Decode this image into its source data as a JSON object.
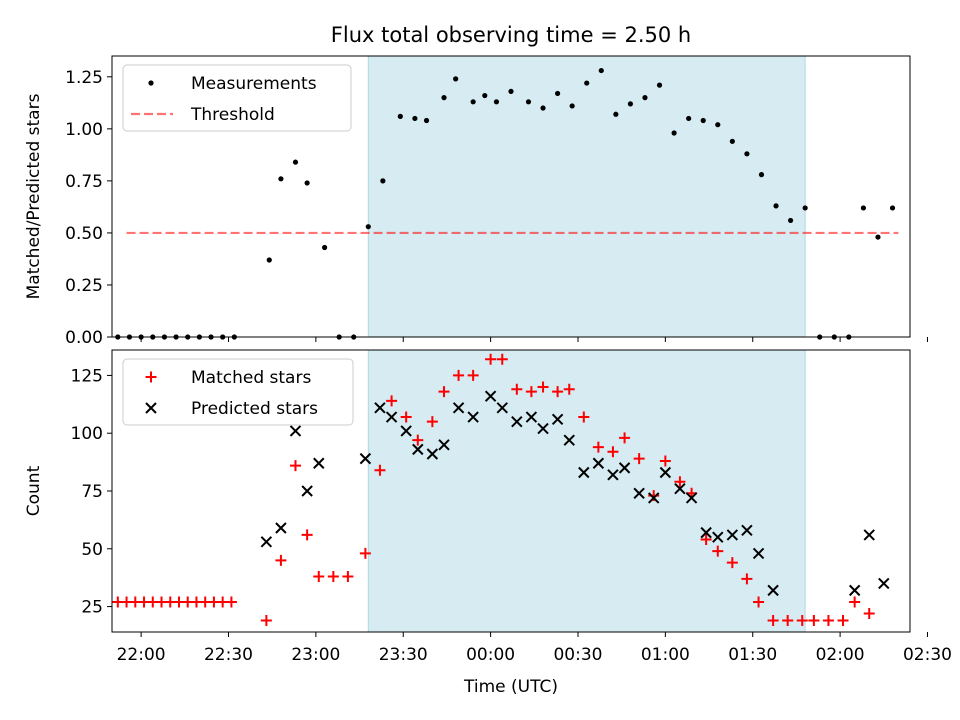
{
  "figure": {
    "title": "Flux total observing time = 2.50 h"
  },
  "colors": {
    "shade": "#add8e6",
    "threshold": "#ff0000",
    "matched": "#ff0000",
    "predicted": "#000000",
    "measurements": "#000000"
  },
  "chart_data": [
    {
      "type": "scatter",
      "ylabel": "Matched/Predicted stars",
      "ylim": [
        0,
        1.35
      ],
      "yticks": [
        0.0,
        0.25,
        0.5,
        0.75,
        1.0,
        1.25
      ],
      "ytick_labels": [
        "0.00",
        "0.25",
        "0.50",
        "0.75",
        "1.00",
        "1.25"
      ],
      "legend": {
        "position": "top-left",
        "entries": [
          "Measurements",
          "Threshold"
        ]
      },
      "shaded_interval": [
        "23:18",
        "01:48"
      ],
      "series": [
        {
          "name": "Measurements",
          "marker": "dot",
          "points": [
            [
              "21:52",
              0
            ],
            [
              "21:56",
              0
            ],
            [
              "22:00",
              0
            ],
            [
              "22:04",
              0
            ],
            [
              "22:08",
              0
            ],
            [
              "22:12",
              0
            ],
            [
              "22:16",
              0
            ],
            [
              "22:20",
              0
            ],
            [
              "22:24",
              0
            ],
            [
              "22:28",
              0
            ],
            [
              "22:32",
              0
            ],
            [
              "22:44",
              0.37
            ],
            [
              "22:48",
              0.76
            ],
            [
              "22:53",
              0.84
            ],
            [
              "22:57",
              0.74
            ],
            [
              "23:03",
              0.43
            ],
            [
              "23:08",
              0
            ],
            [
              "23:13",
              0
            ],
            [
              "23:18",
              0.53
            ],
            [
              "23:23",
              0.75
            ],
            [
              "23:29",
              1.06
            ],
            [
              "23:34",
              1.05
            ],
            [
              "23:38",
              1.04
            ],
            [
              "23:44",
              1.15
            ],
            [
              "23:48",
              1.24
            ],
            [
              "23:54",
              1.13
            ],
            [
              "23:58",
              1.16
            ],
            [
              "00:02",
              1.13
            ],
            [
              "00:07",
              1.18
            ],
            [
              "00:13",
              1.13
            ],
            [
              "00:18",
              1.1
            ],
            [
              "00:23",
              1.17
            ],
            [
              "00:28",
              1.11
            ],
            [
              "00:33",
              1.22
            ],
            [
              "00:38",
              1.28
            ],
            [
              "00:43",
              1.07
            ],
            [
              "00:48",
              1.12
            ],
            [
              "00:53",
              1.15
            ],
            [
              "00:58",
              1.21
            ],
            [
              "01:03",
              0.98
            ],
            [
              "01:08",
              1.05
            ],
            [
              "01:13",
              1.04
            ],
            [
              "01:18",
              1.02
            ],
            [
              "01:23",
              0.94
            ],
            [
              "01:28",
              0.88
            ],
            [
              "01:33",
              0.78
            ],
            [
              "01:38",
              0.63
            ],
            [
              "01:43",
              0.56
            ],
            [
              "01:48",
              0.62
            ],
            [
              "01:53",
              0
            ],
            [
              "01:58",
              0
            ],
            [
              "02:03",
              0
            ],
            [
              "02:08",
              0.62
            ],
            [
              "02:13",
              0.48
            ],
            [
              "02:18",
              0.62
            ]
          ]
        },
        {
          "name": "Threshold",
          "line": "dashed",
          "points": [
            [
              "21:55",
              0.5
            ],
            [
              "02:20",
              0.5
            ]
          ]
        }
      ]
    },
    {
      "type": "scatter",
      "xlabel": "Time (UTC)",
      "ylabel": "Count",
      "ylim": [
        14,
        136
      ],
      "yticks": [
        25,
        50,
        75,
        100,
        125
      ],
      "ytick_labels": [
        "25",
        "50",
        "75",
        "100",
        "125"
      ],
      "xticks": [
        "22:00",
        "22:30",
        "23:00",
        "23:30",
        "00:00",
        "00:30",
        "01:00",
        "01:30",
        "02:00",
        "02:30"
      ],
      "legend": {
        "position": "top-left",
        "entries": [
          "Matched stars",
          "Predicted stars"
        ]
      },
      "shaded_interval": [
        "23:18",
        "01:48"
      ],
      "series": [
        {
          "name": "Matched stars",
          "marker": "plus",
          "points": [
            [
              "21:52",
              27
            ],
            [
              "21:55",
              27
            ],
            [
              "21:58",
              27
            ],
            [
              "22:01",
              27
            ],
            [
              "22:04",
              27
            ],
            [
              "22:07",
              27
            ],
            [
              "22:10",
              27
            ],
            [
              "22:13",
              27
            ],
            [
              "22:16",
              27
            ],
            [
              "22:19",
              27
            ],
            [
              "22:22",
              27
            ],
            [
              "22:25",
              27
            ],
            [
              "22:28",
              27
            ],
            [
              "22:31",
              27
            ],
            [
              "22:43",
              19
            ],
            [
              "22:48",
              45
            ],
            [
              "22:53",
              86
            ],
            [
              "22:57",
              56
            ],
            [
              "23:01",
              38
            ],
            [
              "23:06",
              38
            ],
            [
              "23:11",
              38
            ],
            [
              "23:17",
              48
            ],
            [
              "23:22",
              84
            ],
            [
              "23:26",
              114
            ],
            [
              "23:31",
              107
            ],
            [
              "23:35",
              97
            ],
            [
              "23:40",
              105
            ],
            [
              "23:44",
              118
            ],
            [
              "23:49",
              125
            ],
            [
              "23:54",
              125
            ],
            [
              "00:00",
              132
            ],
            [
              "00:04",
              132
            ],
            [
              "00:09",
              119
            ],
            [
              "00:14",
              118
            ],
            [
              "00:18",
              120
            ],
            [
              "00:23",
              118
            ],
            [
              "00:27",
              119
            ],
            [
              "00:32",
              107
            ],
            [
              "00:37",
              94
            ],
            [
              "00:42",
              92
            ],
            [
              "00:46",
              98
            ],
            [
              "00:51",
              89
            ],
            [
              "00:56",
              73
            ],
            [
              "01:00",
              88
            ],
            [
              "01:05",
              79
            ],
            [
              "01:09",
              74
            ],
            [
              "01:14",
              54
            ],
            [
              "01:18",
              49
            ],
            [
              "01:23",
              44
            ],
            [
              "01:28",
              37
            ],
            [
              "01:32",
              27
            ],
            [
              "01:37",
              19
            ],
            [
              "01:42",
              19
            ],
            [
              "01:47",
              19
            ],
            [
              "01:51",
              19
            ],
            [
              "01:56",
              19
            ],
            [
              "02:01",
              19
            ],
            [
              "02:05",
              27
            ],
            [
              "02:10",
              22
            ]
          ]
        },
        {
          "name": "Predicted stars",
          "marker": "x",
          "points": [
            [
              "22:43",
              53
            ],
            [
              "22:48",
              59
            ],
            [
              "22:53",
              101
            ],
            [
              "22:57",
              75
            ],
            [
              "23:01",
              87
            ],
            [
              "23:17",
              89
            ],
            [
              "23:22",
              111
            ],
            [
              "23:26",
              107
            ],
            [
              "23:31",
              101
            ],
            [
              "23:35",
              93
            ],
            [
              "23:40",
              91
            ],
            [
              "23:44",
              95
            ],
            [
              "23:49",
              111
            ],
            [
              "23:54",
              107
            ],
            [
              "00:00",
              116
            ],
            [
              "00:04",
              111
            ],
            [
              "00:09",
              105
            ],
            [
              "00:14",
              107
            ],
            [
              "00:18",
              102
            ],
            [
              "00:23",
              106
            ],
            [
              "00:27",
              97
            ],
            [
              "00:32",
              83
            ],
            [
              "00:37",
              87
            ],
            [
              "00:42",
              82
            ],
            [
              "00:46",
              85
            ],
            [
              "00:51",
              74
            ],
            [
              "00:56",
              72
            ],
            [
              "01:00",
              83
            ],
            [
              "01:05",
              76
            ],
            [
              "01:09",
              72
            ],
            [
              "01:14",
              57
            ],
            [
              "01:18",
              55
            ],
            [
              "01:23",
              56
            ],
            [
              "01:28",
              58
            ],
            [
              "01:32",
              48
            ],
            [
              "01:37",
              32
            ],
            [
              "02:05",
              32
            ],
            [
              "02:10",
              56
            ],
            [
              "02:15",
              35
            ]
          ]
        }
      ]
    }
  ]
}
